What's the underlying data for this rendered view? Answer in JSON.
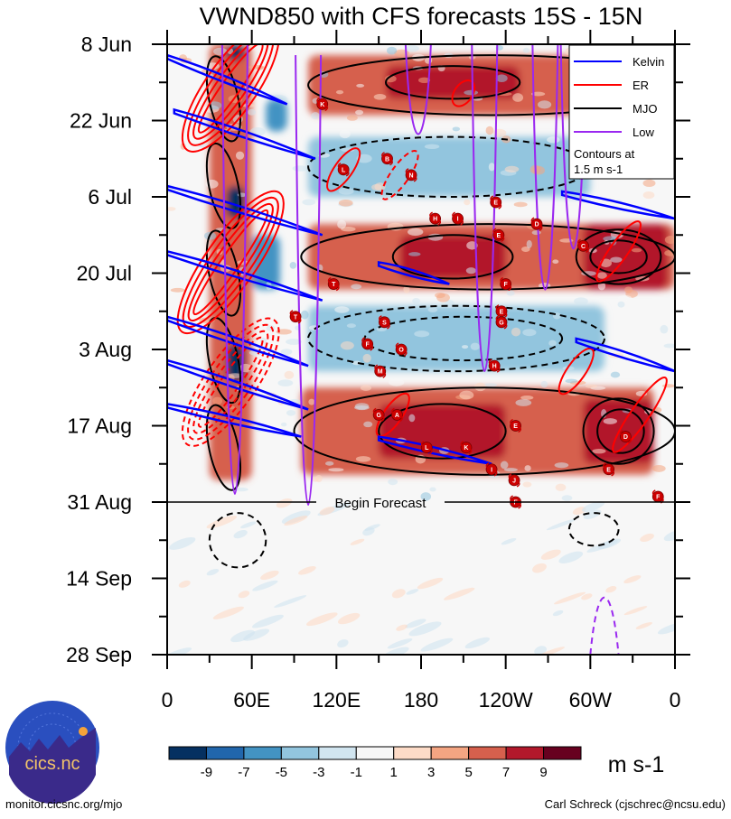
{
  "chart_data": {
    "type": "heatmap",
    "title": "VWND850 with CFS forecasts  15S - 15N",
    "xlabel": "",
    "ylabel": "",
    "x_axis": {
      "range_deg_east": [
        0,
        360
      ],
      "tick_values": [
        0,
        60,
        120,
        180,
        240,
        300,
        360
      ],
      "tick_labels": [
        "0",
        "60E",
        "120E",
        "180",
        "120W",
        "60W",
        "0"
      ],
      "minor_ticks_every_deg": 30
    },
    "y_axis": {
      "direction": "time increases downward",
      "range_days": [
        0,
        112
      ],
      "tick_days": [
        0,
        14,
        28,
        42,
        56,
        70,
        84,
        98,
        112
      ],
      "tick_labels": [
        "8 Jun",
        "22 Jun",
        "6 Jul",
        "20 Jul",
        "3 Aug",
        "17 Aug",
        "31 Aug",
        "14 Sep",
        "28 Sep"
      ],
      "minor_ticks_every_days": 7
    },
    "forecast_start_day": 84,
    "forecast_label": "Begin Forecast",
    "colorbar": {
      "units": "m s-1",
      "levels": [
        -9,
        -7,
        -5,
        -3,
        -1,
        1,
        3,
        5,
        7,
        9
      ],
      "colors": [
        "#053061",
        "#2166ac",
        "#4393c3",
        "#92c5de",
        "#d1e5f0",
        "#f7f7f7",
        "#fddbc7",
        "#f4a582",
        "#d6604d",
        "#b2182b",
        "#67001f"
      ]
    },
    "legend": {
      "placement": "top-right",
      "entries": [
        {
          "name": "Kelvin",
          "color": "#0000ff"
        },
        {
          "name": "ER",
          "color": "#ff0000"
        },
        {
          "name": "MJO",
          "color": "#000000"
        },
        {
          "name": "Low",
          "color": "#9a28f0"
        }
      ],
      "note_line1": "Contours at",
      "note_line2": "1.5 m s-1"
    },
    "anomaly_bands": [
      {
        "lon0": 100,
        "lon1": 360,
        "day0": 2,
        "day1": 13,
        "value": 6
      },
      {
        "lon0": 155,
        "lon1": 250,
        "day0": 4,
        "day1": 10,
        "value": 9
      },
      {
        "lon0": 100,
        "lon1": 360,
        "day0": 33,
        "day1": 45,
        "value": 6
      },
      {
        "lon0": 165,
        "lon1": 240,
        "day0": 35,
        "day1": 43,
        "value": 9
      },
      {
        "lon0": 295,
        "lon1": 355,
        "day0": 33,
        "day1": 45,
        "value": 9
      },
      {
        "lon0": 95,
        "lon1": 345,
        "day0": 63,
        "day1": 79,
        "value": 6
      },
      {
        "lon0": 150,
        "lon1": 240,
        "day0": 66,
        "day1": 76,
        "value": 9
      },
      {
        "lon0": 295,
        "lon1": 345,
        "day0": 65,
        "day1": 77,
        "value": 9
      },
      {
        "lon0": 100,
        "lon1": 300,
        "day0": 17,
        "day1": 28,
        "value": -3
      },
      {
        "lon0": 100,
        "lon1": 310,
        "day0": 48,
        "day1": 60,
        "value": -3
      },
      {
        "lon0": 30,
        "lon1": 60,
        "day0": 0,
        "day1": 80,
        "value": 7
      },
      {
        "lon0": 42,
        "lon1": 55,
        "day0": 26,
        "day1": 32,
        "value": -9
      },
      {
        "lon0": 42,
        "lon1": 55,
        "day0": 55,
        "day1": 62,
        "value": -9
      },
      {
        "lon0": 42,
        "lon1": 55,
        "day0": 0,
        "day1": 3,
        "value": -9
      },
      {
        "lon0": 60,
        "lon1": 80,
        "day0": 35,
        "day1": 45,
        "value": -5
      },
      {
        "lon0": 70,
        "lon1": 85,
        "day0": 10,
        "day1": 16,
        "value": -5
      }
    ],
    "storms": [
      {
        "id": "K",
        "lon": 110,
        "day": 11
      },
      {
        "id": "C",
        "lon": 325,
        "day": 2
      },
      {
        "id": "B",
        "lon": 320,
        "day": 8
      },
      {
        "id": "L",
        "lon": 125,
        "day": 23
      },
      {
        "id": "B",
        "lon": 156,
        "day": 21
      },
      {
        "id": "N",
        "lon": 173,
        "day": 24
      },
      {
        "id": "E",
        "lon": 233,
        "day": 29
      },
      {
        "id": "H",
        "lon": 190,
        "day": 32
      },
      {
        "id": "I",
        "lon": 206,
        "day": 32
      },
      {
        "id": "D",
        "lon": 262,
        "day": 33
      },
      {
        "id": "E",
        "lon": 235,
        "day": 35
      },
      {
        "id": "C",
        "lon": 295,
        "day": 37
      },
      {
        "id": "T",
        "lon": 118,
        "day": 44
      },
      {
        "id": "F",
        "lon": 240,
        "day": 44
      },
      {
        "id": "E",
        "lon": 237,
        "day": 49
      },
      {
        "id": "G",
        "lon": 237,
        "day": 51
      },
      {
        "id": "T",
        "lon": 91,
        "day": 50
      },
      {
        "id": "S",
        "lon": 154,
        "day": 51
      },
      {
        "id": "F",
        "lon": 142,
        "day": 55
      },
      {
        "id": "O",
        "lon": 166,
        "day": 56
      },
      {
        "id": "H",
        "lon": 232,
        "day": 59
      },
      {
        "id": "M",
        "lon": 151,
        "day": 60
      },
      {
        "id": "G",
        "lon": 150,
        "day": 68
      },
      {
        "id": "A",
        "lon": 163,
        "day": 68
      },
      {
        "id": "E",
        "lon": 247,
        "day": 70
      },
      {
        "id": "L",
        "lon": 184,
        "day": 74
      },
      {
        "id": "K",
        "lon": 212,
        "day": 74
      },
      {
        "id": "D",
        "lon": 325,
        "day": 72
      },
      {
        "id": "I",
        "lon": 230,
        "day": 78
      },
      {
        "id": "E",
        "lon": 313,
        "day": 78
      },
      {
        "id": "J",
        "lon": 246,
        "day": 80
      },
      {
        "id": "F",
        "lon": 348,
        "day": 83
      },
      {
        "id": "F",
        "lon": 247,
        "day": 84
      }
    ],
    "kelvin_tracks": [
      {
        "lon0": 0,
        "day0": 2,
        "lon1": 85,
        "day1": 11
      },
      {
        "lon0": 5,
        "day0": 12,
        "lon1": 105,
        "day1": 21
      },
      {
        "lon0": 0,
        "day0": 26,
        "lon1": 110,
        "day1": 35
      },
      {
        "lon0": 0,
        "day0": 38,
        "lon1": 110,
        "day1": 47
      },
      {
        "lon0": 0,
        "day0": 50,
        "lon1": 100,
        "day1": 59
      },
      {
        "lon0": 0,
        "day0": 58,
        "lon1": 100,
        "day1": 67
      },
      {
        "lon0": 0,
        "day0": 66,
        "lon1": 95,
        "day1": 72
      },
      {
        "lon0": 150,
        "day0": 40,
        "lon1": 200,
        "day1": 44
      },
      {
        "lon0": 150,
        "day0": 72,
        "lon1": 230,
        "day1": 77
      },
      {
        "lon0": 280,
        "day0": 27,
        "lon1": 360,
        "day1": 32
      },
      {
        "lon0": 290,
        "day0": 54,
        "lon1": 360,
        "day1": 60
      }
    ],
    "low_frequency_lines": [
      {
        "lon": 100,
        "day_min": 2,
        "day_max": 112
      },
      {
        "lon": 48,
        "day_min": 0,
        "day_max": 110
      },
      {
        "lon": 178,
        "day_min": 0,
        "day_max": 22
      },
      {
        "lon": 225,
        "day_min": 0,
        "day_max": 80
      },
      {
        "lon": 268,
        "day_min": 0,
        "day_max": 60
      },
      {
        "lon": 288,
        "day_min": 0,
        "day_max": 50
      }
    ]
  },
  "footer": {
    "left": "monitor.cicsnc.org/mjo",
    "right": "Carl Schreck (cjschrec@ncsu.edu)",
    "logo_text": "cics.nc",
    "logo_ring_text": "Cooperative Institute for Climate and Satellites"
  }
}
